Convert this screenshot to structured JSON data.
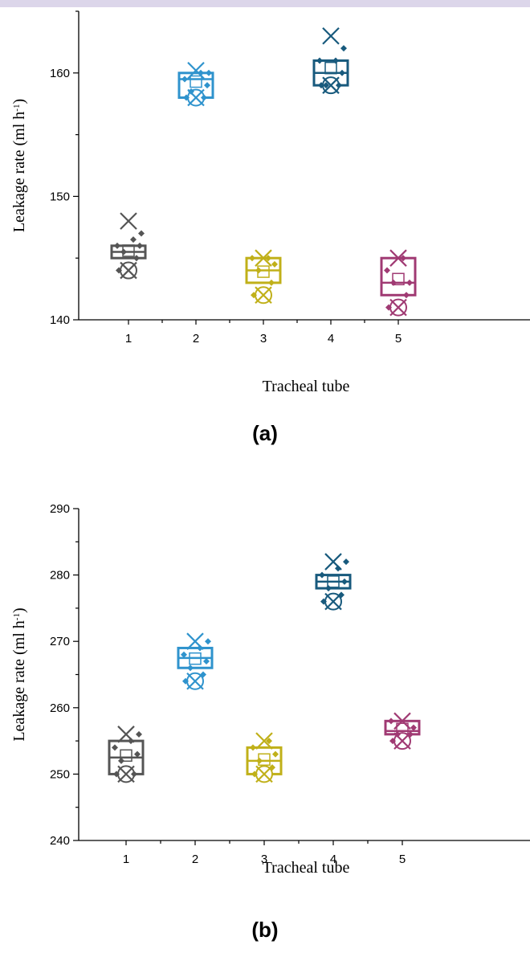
{
  "colors": {
    "topbar": "#dcd6ea",
    "axis": "#000000",
    "series": [
      "#555555",
      "#2f93cd",
      "#c0b019",
      "#185a7d",
      "#a03a73"
    ]
  },
  "chart_data": [
    {
      "type": "box",
      "panel_label": "(a)",
      "xlabel": "Tracheal tube",
      "ylabel": "Leakage rate (ml h",
      "ylabel_sup": "-1",
      "ylabel_close": ")",
      "ylim": [
        140,
        165
      ],
      "yticks": [
        140,
        150,
        160
      ],
      "categories": [
        "1",
        "2",
        "3",
        "4",
        "5"
      ],
      "boxes": [
        {
          "category": "1",
          "q1": 145.0,
          "median": 145.5,
          "q3": 146.0,
          "mean": 145.6,
          "max_marker": 148.0,
          "min_marker": 144.0,
          "points": [
            144.0,
            145.0,
            145.5,
            146.0,
            146.0,
            146.5,
            147.0
          ]
        },
        {
          "category": "2",
          "q1": 158.0,
          "median": 159.5,
          "q3": 160.0,
          "mean": 159.3,
          "max_marker": 160.2,
          "min_marker": 158.0,
          "points": [
            158.0,
            158.0,
            158.5,
            159.0,
            159.5,
            160.0,
            160.0
          ]
        },
        {
          "category": "3",
          "q1": 143.0,
          "median": 144.0,
          "q3": 145.0,
          "mean": 143.9,
          "max_marker": 145.0,
          "min_marker": 142.0,
          "points": [
            142.0,
            143.0,
            144.0,
            144.5,
            145.0,
            145.0
          ]
        },
        {
          "category": "4",
          "q1": 159.0,
          "median": 160.0,
          "q3": 161.0,
          "mean": 160.4,
          "max_marker": 163.0,
          "min_marker": 159.0,
          "points": [
            159.0,
            159.0,
            159.0,
            160.0,
            161.0,
            161.0,
            162.0
          ]
        },
        {
          "category": "5",
          "q1": 142.0,
          "median": 143.0,
          "q3": 145.0,
          "mean": 143.3,
          "max_marker": 145.0,
          "min_marker": 141.0,
          "points": [
            141.0,
            142.0,
            143.0,
            143.0,
            144.0,
            145.0
          ]
        }
      ]
    },
    {
      "type": "box",
      "panel_label": "(b)",
      "xlabel": "Tracheal tube",
      "ylabel": "Leakage rate (ml h",
      "ylabel_sup": "-1",
      "ylabel_close": ")",
      "ylim": [
        240,
        290
      ],
      "yticks": [
        240,
        250,
        260,
        270,
        280,
        290
      ],
      "categories": [
        "1",
        "2",
        "3",
        "4",
        "5"
      ],
      "boxes": [
        {
          "category": "1",
          "q1": 250.0,
          "median": 252.5,
          "q3": 255.0,
          "mean": 252.8,
          "max_marker": 256.0,
          "min_marker": 250.0,
          "points": [
            250.0,
            250.0,
            252.0,
            253.0,
            254.0,
            255.0,
            256.0
          ]
        },
        {
          "category": "2",
          "q1": 266.0,
          "median": 267.5,
          "q3": 269.0,
          "mean": 267.4,
          "max_marker": 270.0,
          "min_marker": 264.0,
          "points": [
            264.0,
            265.0,
            266.0,
            267.0,
            268.0,
            269.0,
            270.0
          ]
        },
        {
          "category": "3",
          "q1": 250.0,
          "median": 252.0,
          "q3": 254.0,
          "mean": 252.2,
          "max_marker": 255.0,
          "min_marker": 250.0,
          "points": [
            250.0,
            251.0,
            252.0,
            253.0,
            254.0,
            255.0
          ]
        },
        {
          "category": "4",
          "q1": 278.0,
          "median": 279.0,
          "q3": 280.0,
          "mean": 279.0,
          "max_marker": 282.0,
          "min_marker": 276.0,
          "points": [
            276.0,
            277.0,
            278.0,
            279.0,
            280.0,
            281.0,
            282.0
          ]
        },
        {
          "category": "5",
          "q1": 256.0,
          "median": 256.5,
          "q3": 258.0,
          "mean": 256.8,
          "max_marker": 258.0,
          "min_marker": 255.0,
          "points": [
            255.0,
            256.0,
            256.0,
            257.0,
            258.0
          ]
        }
      ]
    }
  ]
}
